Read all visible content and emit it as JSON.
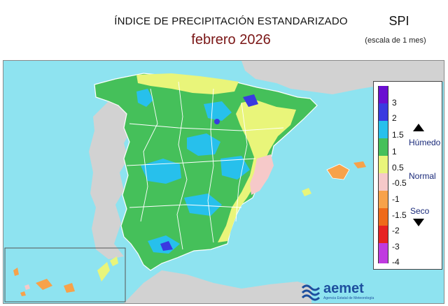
{
  "header": {
    "title": "ÍNDICE DE PRECIPITACIÓN ESTANDARIZADO",
    "period": "febrero  2026",
    "index_name": "SPI",
    "scale": "(escala de 1 mes)"
  },
  "legend": {
    "ticks": [
      "3",
      "2",
      "1.5",
      "1",
      "0.5",
      "-0.5",
      "-1",
      "-1.5",
      "-2",
      "-3",
      "-4"
    ],
    "colors": [
      "#6a0ed1",
      "#3a3ae0",
      "#27c0ec",
      "#45c05a",
      "#e9f57a",
      "#f6c9c9",
      "#f7a24a",
      "#ef6a1a",
      "#e62222",
      "#c03ae0"
    ],
    "labels": {
      "wet": "Húmedo",
      "normal": "Normal",
      "dry": "Seco"
    }
  },
  "map_colors": {
    "sea": "#8ee3f0",
    "neighbours": "#d2d2d2",
    "moderately_wet": "#45c05a",
    "very_wet": "#27c0ec",
    "extremely_wet": "#3a3ae0",
    "normal_wet": "#e9f57a",
    "normal_dry": "#f6c9c9",
    "moderately_dry": "#f7a24a"
  },
  "logo": {
    "name": "aemet",
    "tagline": "Agencia Estatal de Meteorología"
  }
}
